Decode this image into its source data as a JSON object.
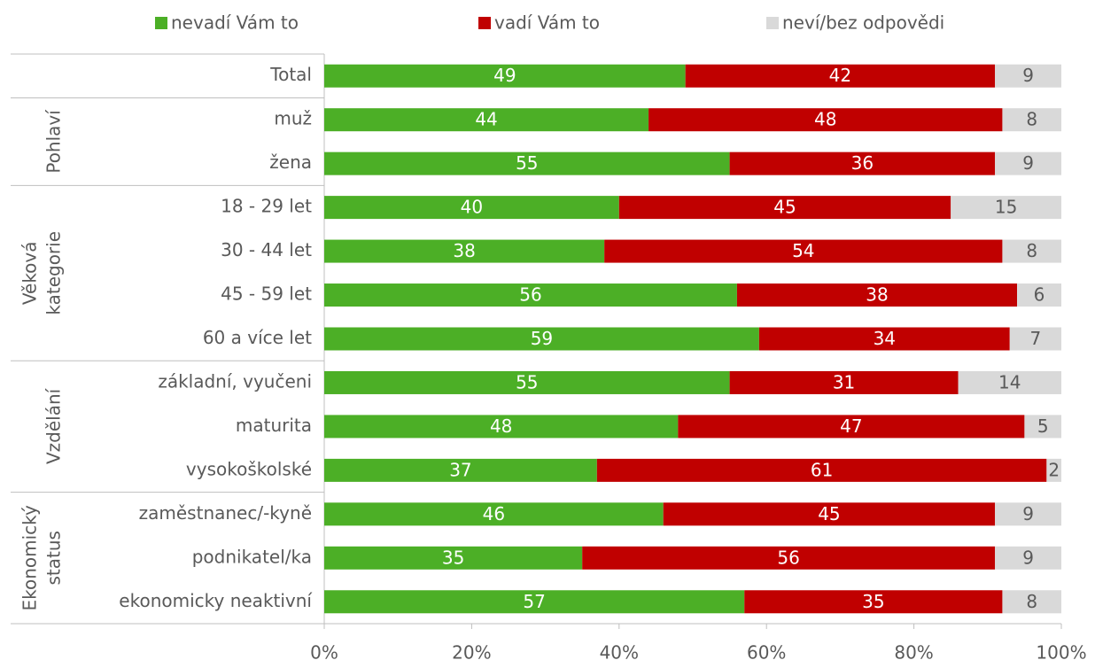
{
  "chart_data": {
    "type": "stacked-bar-horizontal",
    "groups": [
      {
        "label": null,
        "categories": [
          "Total"
        ]
      },
      {
        "label": [
          "Pohlaví"
        ],
        "categories": [
          "muž",
          "žena"
        ]
      },
      {
        "label": [
          "Věková",
          "kategorie"
        ],
        "categories": [
          "18 - 29 let",
          "30 - 44 let",
          "45 - 59 let",
          "60 a více let"
        ]
      },
      {
        "label": [
          "Vzdělání"
        ],
        "categories": [
          "základní, vyučeni",
          "maturita",
          "vysokoškolské"
        ]
      },
      {
        "label": [
          "Ekonomický",
          "status"
        ],
        "categories": [
          "zaměstnanec/-kyně",
          "podnikatel/ka",
          "ekonomicky neaktivní"
        ]
      }
    ],
    "series": [
      {
        "name": "nevadí Vám to",
        "color": "#4caf26",
        "label_color": "#ffffff",
        "values": [
          49,
          44,
          55,
          40,
          38,
          56,
          59,
          55,
          48,
          37,
          46,
          35,
          57
        ]
      },
      {
        "name": "vadí Vám to",
        "color": "#c00000",
        "label_color": "#ffffff",
        "values": [
          42,
          48,
          36,
          45,
          54,
          38,
          34,
          31,
          47,
          61,
          45,
          56,
          35
        ]
      },
      {
        "name": "neví/bez odpovědi",
        "color": "#d9d9d9",
        "label_color": "#595959",
        "values": [
          9,
          8,
          9,
          15,
          8,
          6,
          7,
          14,
          5,
          2,
          9,
          9,
          8
        ]
      }
    ],
    "xlim": [
      0,
      100
    ],
    "xticks": [
      {
        "value": 0,
        "label": "0%"
      },
      {
        "value": 20,
        "label": "20%"
      },
      {
        "value": 40,
        "label": "40%"
      },
      {
        "value": 60,
        "label": "60%"
      },
      {
        "value": 80,
        "label": "80%"
      },
      {
        "value": 100,
        "label": "100%"
      }
    ]
  }
}
